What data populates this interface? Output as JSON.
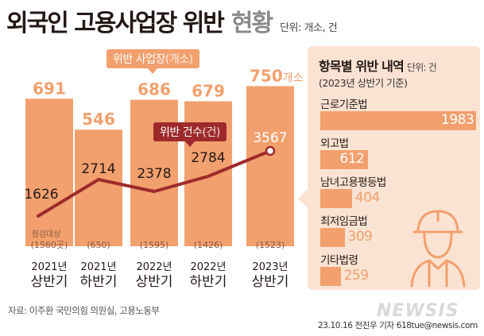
{
  "title": {
    "main": "외국인 고용사업장 위반",
    "sub": "현황",
    "unit": "단위: 개소, 건"
  },
  "chart_data": {
    "type": "bar",
    "categories": [
      {
        "line1": "2021년",
        "line2": "상반기"
      },
      {
        "line1": "2021년",
        "line2": "하반기"
      },
      {
        "line1": "2022년",
        "line2": "상반기"
      },
      {
        "line1": "2022년",
        "line2": "하반기"
      },
      {
        "line1": "2023년",
        "line2": "상반기"
      }
    ],
    "series": [
      {
        "name": "위반 사업장(개소)",
        "type": "bar",
        "values": [
          691,
          546,
          686,
          679,
          750
        ],
        "labels": [
          "691",
          "546",
          "686",
          "679",
          "750개소"
        ]
      },
      {
        "name": "위반 건수(건)",
        "type": "line",
        "values": [
          1626,
          2714,
          2378,
          2784,
          3567
        ],
        "labels": [
          "1626",
          "2714",
          "2378",
          "2784",
          "3567"
        ]
      }
    ],
    "inspection_targets": {
      "values": [
        1560,
        650,
        1595,
        1426,
        1523
      ],
      "labels": [
        "(1560곳)",
        "(650)",
        "(1595)",
        "(1426)",
        "(1523)"
      ],
      "first_caption": "점검대상"
    },
    "legend_bars": {
      "main": "위반 사업장",
      "paren": "(개소)"
    },
    "legend_line": {
      "main": "위반 건수",
      "paren": "(건)"
    },
    "colors": {
      "bar": "#f2a06e",
      "line": "#9e2a2b",
      "bar_value": "#f2a06e",
      "line_value": "#ffffff",
      "axis_label": "#231815"
    }
  },
  "panel": {
    "title": "항목별 위반 내역",
    "unit": "단위: 건",
    "subtitle": "(2023년 상반기 기준)",
    "items": [
      {
        "label": "근로기준법",
        "value": 1983,
        "value_label": "1983"
      },
      {
        "label": "외고법",
        "value": 612,
        "value_label": "612"
      },
      {
        "label": "남녀고용평등법",
        "value": 404,
        "value_label": "404"
      },
      {
        "label": "최저임금법",
        "value": 309,
        "value_label": "309"
      },
      {
        "label": "기타법령",
        "value": 259,
        "value_label": "259"
      }
    ],
    "bar_color": "#f2a06e"
  },
  "source": "자료: 이주환 국민의힘 의원실, 고용노동부",
  "credit": "23.10.16 전진우 기자 618tue@newsis.com",
  "watermark": "NEWSIS",
  "icons": {
    "worker": "worker-helmet-icon"
  }
}
